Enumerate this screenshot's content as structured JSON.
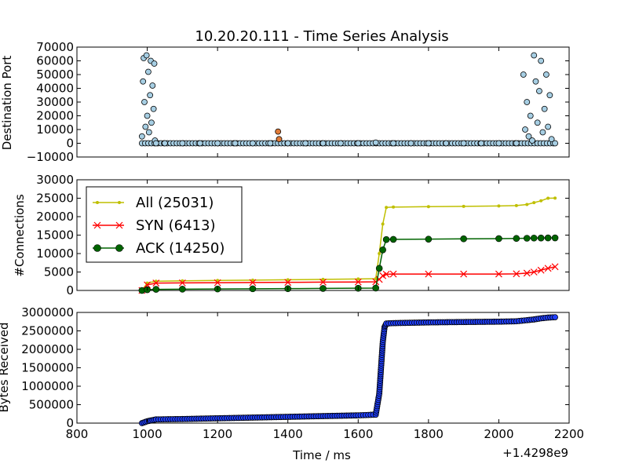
{
  "chart_data": [
    {
      "type": "scatter",
      "title": "10.20.20.111 - Time Series Analysis",
      "xlabel": "",
      "ylabel": "Destination Port",
      "ylim": [
        -10000,
        70000
      ],
      "yticks": [
        "70000",
        "60000",
        "50000",
        "40000",
        "30000",
        "20000",
        "10000",
        "0",
        "−10000"
      ],
      "colors": {
        "marker_fill": "#a6cee3",
        "marker_edge": "#000000",
        "highlight": "#e07b39"
      },
      "series": [
        {
          "values_description_free": true,
          "x": [
            985,
            988,
            990,
            992,
            995,
            998,
            1000,
            1003,
            1005,
            1008,
            1010,
            1012,
            1015,
            1018,
            1020,
            1022,
            1025,
            1050,
            1100,
            1150,
            1200,
            1250,
            1300,
            1350,
            1372,
            1375,
            1400,
            1450,
            1500,
            1550,
            1600,
            1650,
            1700,
            1750,
            1800,
            1850,
            1900,
            1950,
            2000,
            2050,
            2070,
            2075,
            2080,
            2085,
            2090,
            2095,
            2100,
            2105,
            2110,
            2115,
            2120,
            2125,
            2130,
            2135,
            2140,
            2145,
            2150,
            2160
          ],
          "y": [
            5000,
            45000,
            62000,
            30000,
            12000,
            64000,
            20000,
            52000,
            8000,
            35000,
            60000,
            15000,
            42000,
            25000,
            58000,
            2000,
            0,
            0,
            0,
            0,
            0,
            0,
            0,
            0,
            8500,
            3000,
            0,
            0,
            0,
            0,
            0,
            500,
            0,
            0,
            0,
            0,
            0,
            0,
            0,
            0,
            50000,
            10000,
            30000,
            5000,
            20000,
            2000,
            64000,
            45000,
            15000,
            38000,
            60000,
            8000,
            25000,
            50000,
            12000,
            35000,
            3000,
            0
          ]
        }
      ]
    },
    {
      "type": "line",
      "title": "",
      "xlabel": "",
      "ylabel": "#Connections",
      "ylim": [
        0,
        30000
      ],
      "yticks": [
        "30000",
        "25000",
        "20000",
        "15000",
        "10000",
        "5000",
        "0"
      ],
      "series": [
        {
          "name": "All (25031)",
          "color": "#bfbf00",
          "marker": "dot",
          "x": [
            985,
            1000,
            1025,
            1100,
            1200,
            1300,
            1400,
            1500,
            1600,
            1650,
            1660,
            1670,
            1680,
            1700,
            1800,
            1900,
            2000,
            2050,
            2080,
            2100,
            2120,
            2140,
            2160
          ],
          "y": [
            0,
            2000,
            2500,
            2600,
            2700,
            2800,
            2900,
            3000,
            3100,
            3200,
            10000,
            18000,
            22500,
            22600,
            22700,
            22800,
            22900,
            23000,
            23300,
            23800,
            24300,
            25000,
            25031
          ]
        },
        {
          "name": "SYN (6413)",
          "color": "#ff0000",
          "marker": "x",
          "x": [
            985,
            1000,
            1025,
            1100,
            1200,
            1300,
            1400,
            1500,
            1600,
            1650,
            1660,
            1670,
            1680,
            1700,
            1800,
            1900,
            2000,
            2050,
            2080,
            2100,
            2120,
            2140,
            2160
          ],
          "y": [
            0,
            1500,
            2000,
            2050,
            2100,
            2150,
            2200,
            2250,
            2300,
            2350,
            3000,
            4000,
            4400,
            4450,
            4450,
            4450,
            4450,
            4500,
            4700,
            5000,
            5500,
            6000,
            6413
          ]
        },
        {
          "name": "ACK (14250)",
          "color": "#006400",
          "marker": "circle",
          "x": [
            985,
            1000,
            1025,
            1100,
            1200,
            1300,
            1400,
            1500,
            1600,
            1650,
            1660,
            1670,
            1680,
            1700,
            1800,
            1900,
            2000,
            2050,
            2080,
            2100,
            2120,
            2140,
            2160
          ],
          "y": [
            0,
            200,
            300,
            350,
            400,
            450,
            500,
            550,
            600,
            650,
            6000,
            11000,
            13800,
            13850,
            13900,
            14000,
            14050,
            14100,
            14150,
            14200,
            14220,
            14240,
            14250
          ]
        }
      ],
      "legend": "upper-left"
    },
    {
      "type": "scatter",
      "title": "",
      "xlabel": "Time / ms",
      "ylabel": "Bytes Received",
      "ylim": [
        0,
        3000000
      ],
      "xlim": [
        800,
        2200
      ],
      "xticks": [
        "800",
        "1000",
        "1200",
        "1400",
        "1600",
        "1800",
        "2000",
        "2200"
      ],
      "yticks": [
        "3000000",
        "2500000",
        "2000000",
        "1500000",
        "1000000",
        "500000",
        "0"
      ],
      "offset_label": "+1.4298e9",
      "colors": {
        "marker_fill": "#1f3fff",
        "marker_edge": "#000000"
      },
      "series": [
        {
          "x": [
            985,
            1000,
            1025,
            1100,
            1200,
            1300,
            1400,
            1500,
            1600,
            1650,
            1660,
            1665,
            1670,
            1675,
            1680,
            1700,
            1800,
            1900,
            2000,
            2050,
            2080,
            2100,
            2120,
            2140,
            2160
          ],
          "y": [
            0,
            50000,
            100000,
            110000,
            130000,
            150000,
            170000,
            190000,
            210000,
            230000,
            800000,
            1500000,
            2200000,
            2600000,
            2700000,
            2710000,
            2730000,
            2740000,
            2750000,
            2760000,
            2790000,
            2810000,
            2840000,
            2860000,
            2870000
          ]
        }
      ]
    }
  ]
}
